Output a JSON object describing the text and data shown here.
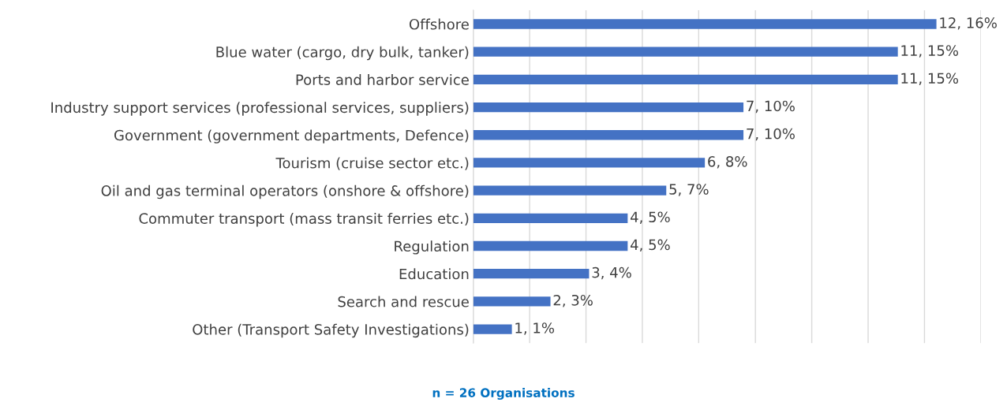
{
  "chart_data": {
    "type": "bar",
    "orientation": "horizontal",
    "categories": [
      "Offshore",
      "Blue water (cargo, dry bulk, tanker)",
      "Ports and harbor service",
      "Industry support services (professional services, suppliers)",
      "Government (government departments, Defence)",
      "Tourism (cruise sector etc.)",
      "Oil and gas terminal operators (onshore & offshore)",
      "Commuter transport (mass transit ferries etc.)",
      "Regulation",
      "Education",
      "Search and rescue",
      "Other (Transport Safety Investigations)"
    ],
    "values": [
      12,
      11,
      11,
      7,
      7,
      6,
      5,
      4,
      4,
      3,
      2,
      1
    ],
    "value_labels": [
      "12, 16%",
      "11, 15%",
      "11, 15%",
      "7, 10%",
      "7, 10%",
      "6, 8%",
      "5, 7%",
      "4, 5%",
      "4, 5%",
      "3, 4%",
      "2, 3%",
      "1, 1%"
    ],
    "color": "#4472c4",
    "xlim": [
      0,
      13.15
    ],
    "xticks": [
      {
        "value": 0,
        "label": null
      },
      {
        "value": 1.46,
        "label": null
      },
      {
        "value": 2.92,
        "label": null
      },
      {
        "value": 4.38,
        "label": null
      },
      {
        "value": 5.84,
        "label": null
      },
      {
        "value": 7.31,
        "label": null
      },
      {
        "value": 8.77,
        "label": null
      },
      {
        "value": 10.23,
        "label": null
      },
      {
        "value": 11.69,
        "label": null
      },
      {
        "value": 13.15,
        "label": null
      }
    ],
    "grid": "x",
    "tick_labels": "y",
    "annotations": [
      "n = 26 Organisations"
    ]
  }
}
